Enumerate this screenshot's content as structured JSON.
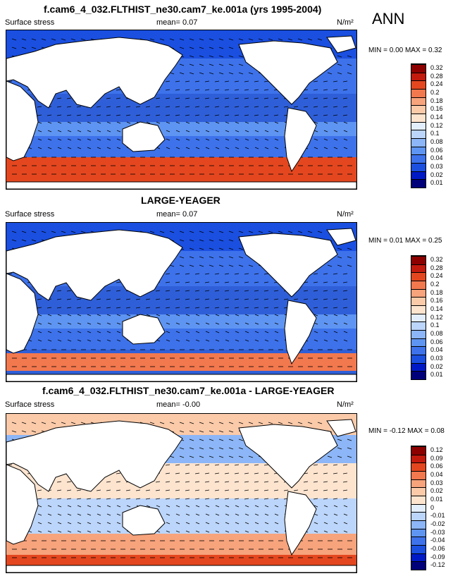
{
  "header": {
    "title": "f.cam6_4_032.FLTHIST_ne30.cam7_ke.001a (yrs 1995-2004)",
    "season": "ANN"
  },
  "colors": {
    "top_scale": [
      "#00007a",
      "#0019c7",
      "#1a4fe0",
      "#3d72eb",
      "#5f95f2",
      "#8cb6f7",
      "#bcd5fa",
      "#e3eefc",
      "#fde4cf",
      "#fbcaa9",
      "#f7a37c",
      "#f2784e",
      "#e4471f",
      "#c21a0d",
      "#8c0000"
    ],
    "diff_scale": [
      "#00007a",
      "#0019c7",
      "#1a4fe0",
      "#3d72eb",
      "#5f95f2",
      "#8cb6f7",
      "#bcd5fa",
      "#e3eefc",
      "#fde4cf",
      "#fbcaa9",
      "#f7a37c",
      "#f2784e",
      "#e4471f",
      "#c21a0d",
      "#8c0000"
    ],
    "land": "#ffffff",
    "arrow": "#000000"
  },
  "panels": [
    {
      "title": "",
      "variable": "Surface stress",
      "mean": "mean=  0.07",
      "units": "N/m²",
      "minmax": "MIN =  0.00 MAX =  0.32",
      "colorbar_labels": [
        "0.32",
        "0.28",
        "0.24",
        "0.2",
        "0.18",
        "0.16",
        "0.14",
        "0.12",
        "0.1",
        "0.08",
        "0.06",
        "0.04",
        "0.03",
        "0.02",
        "0.01"
      ],
      "map_field": {
        "description_stub": "model"
      }
    },
    {
      "title": "LARGE-YEAGER",
      "variable": "Surface stress",
      "mean": "mean=  0.07",
      "units": "N/m²",
      "minmax": "MIN =  0.01 MAX =  0.25",
      "colorbar_labels": [
        "0.32",
        "0.28",
        "0.24",
        "0.2",
        "0.18",
        "0.16",
        "0.14",
        "0.12",
        "0.1",
        "0.08",
        "0.06",
        "0.04",
        "0.03",
        "0.02",
        "0.01"
      ],
      "map_field": {
        "description_stub": "obs"
      }
    },
    {
      "title": "f.cam6_4_032.FLTHIST_ne30.cam7_ke.001a - LARGE-YEAGER",
      "variable": "Surface stress",
      "mean": "mean=  -0.00",
      "units": "N/m²",
      "minmax": "MIN = -0.12 MAX =  0.08",
      "colorbar_labels": [
        "0.12",
        "0.09",
        "0.06",
        "0.04",
        "0.03",
        "0.02",
        "0.01",
        "0",
        "-0.01",
        "-0.02",
        "-0.03",
        "-0.04",
        "-0.06",
        "-0.09",
        "-0.12"
      ],
      "map_field": {
        "description_stub": "diff"
      }
    }
  ]
}
